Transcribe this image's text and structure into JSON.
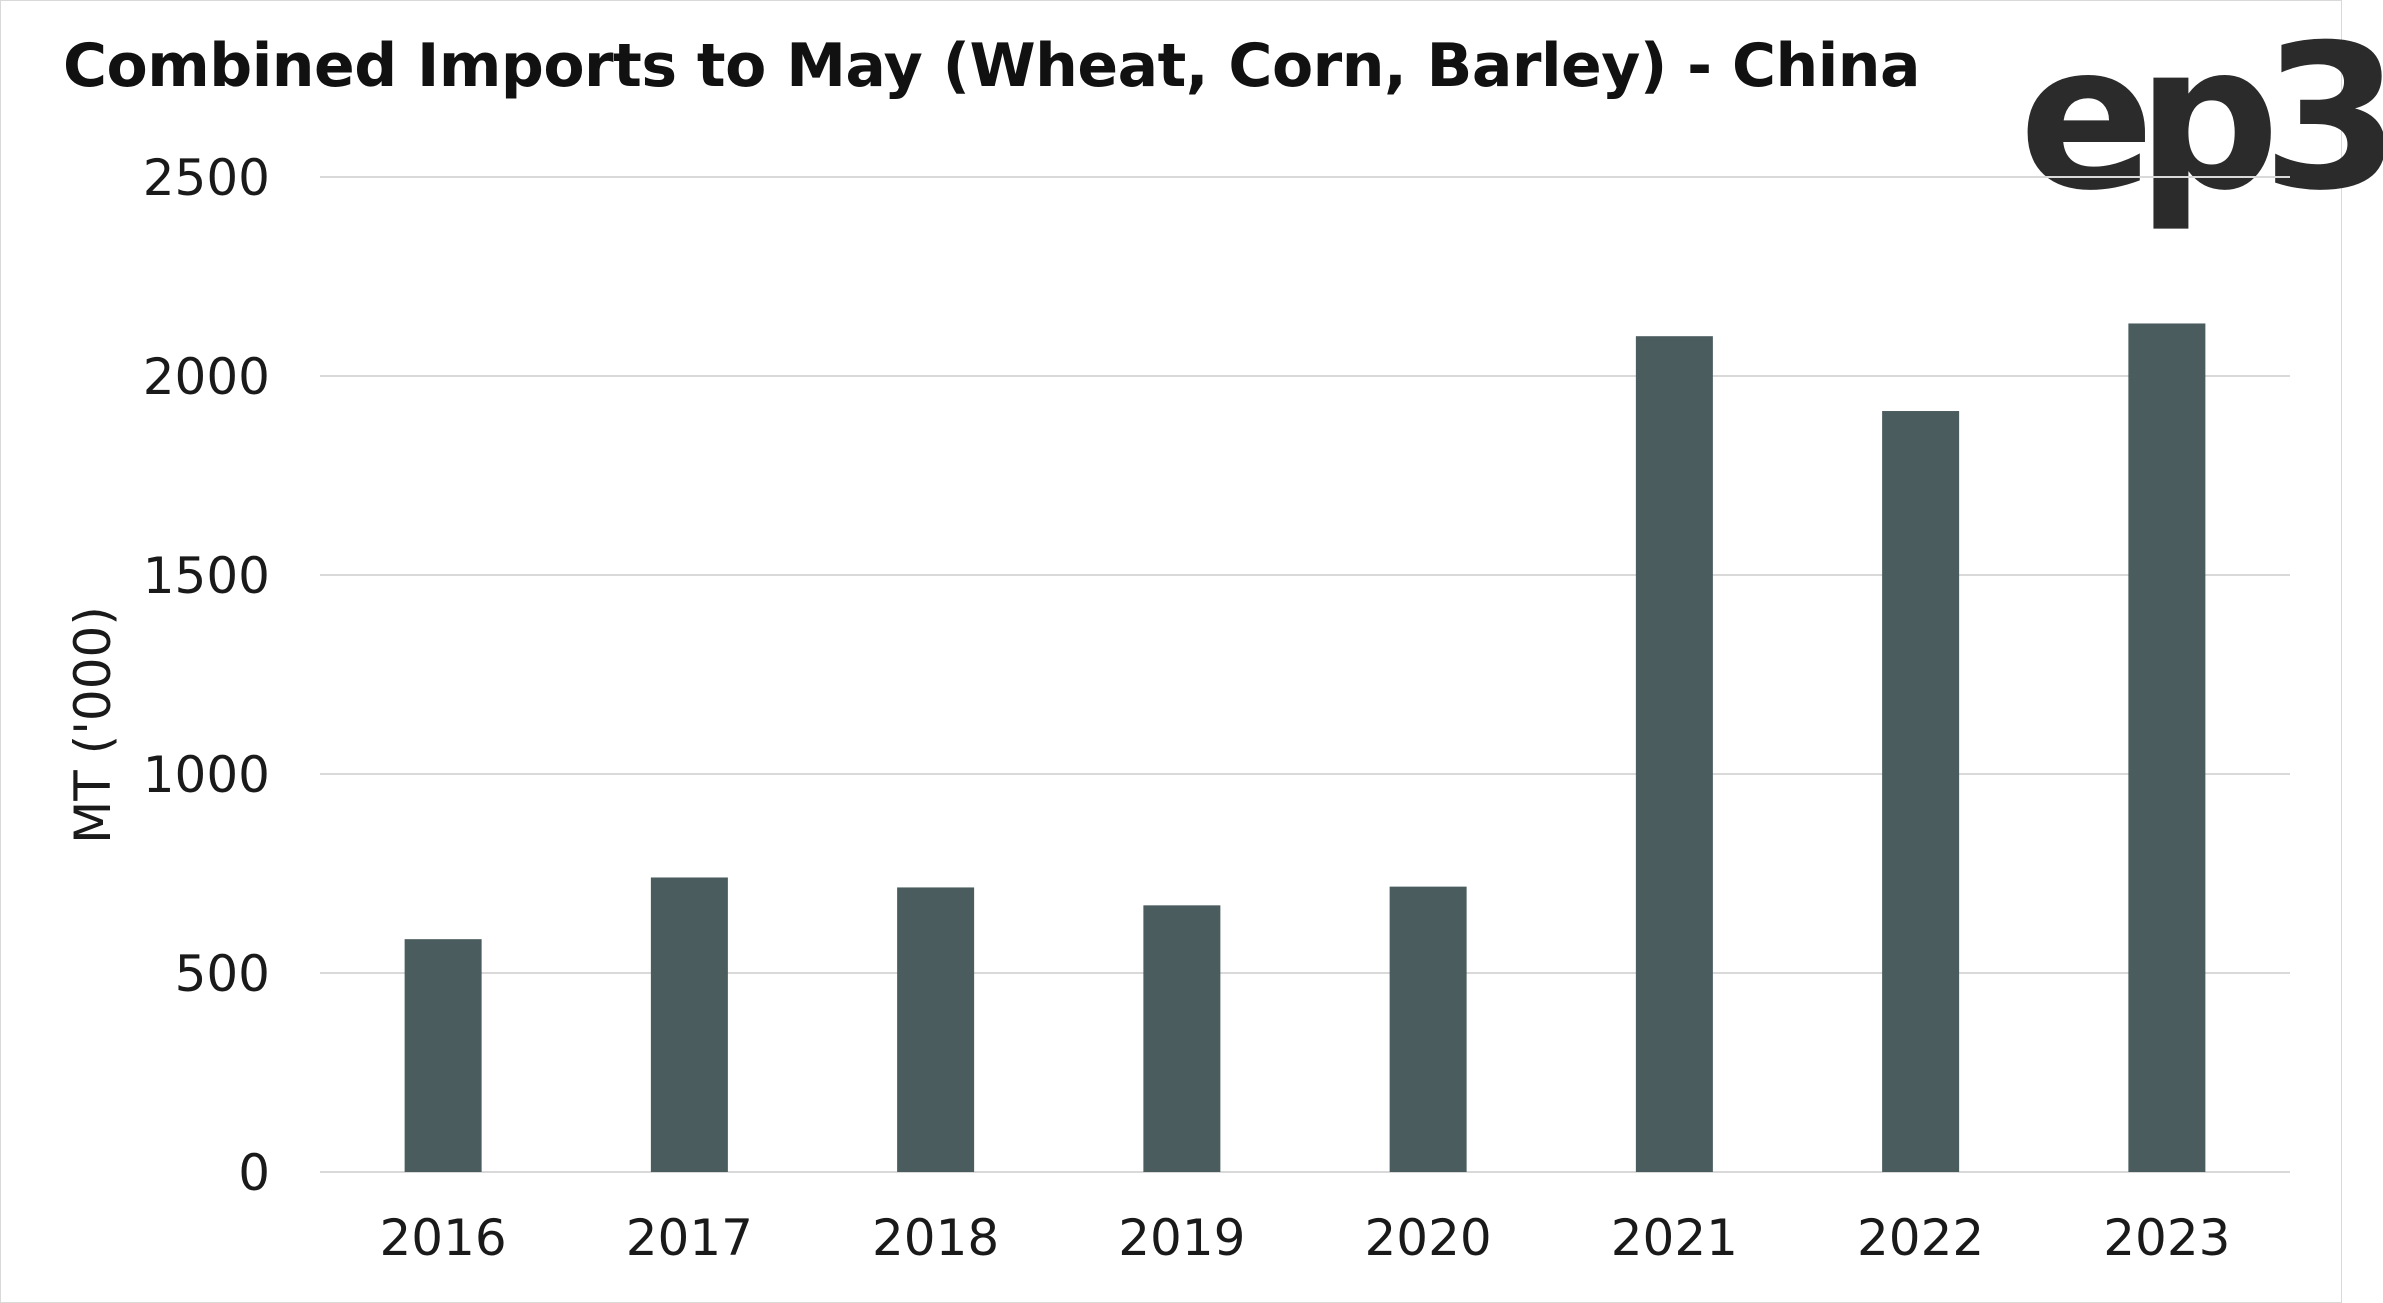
{
  "title": "Combined Imports to May (Wheat, Corn, Barley) - China",
  "logo_text": "ep3",
  "colors": {
    "bar": "#4a5c5e",
    "gridline": "#d9d9d9",
    "text": "#1a1a1a",
    "logo": "#2b2b2b"
  },
  "chart_data": {
    "type": "bar",
    "title": "Combined Imports to May (Wheat, Corn, Barley) - China",
    "xlabel": "",
    "ylabel": "MT ('000)",
    "ylim": [
      0,
      2500
    ],
    "yticks": [
      0,
      500,
      1000,
      1500,
      2000,
      2500
    ],
    "grid": true,
    "legend": "none",
    "categories": [
      "2016",
      "2017",
      "2018",
      "2019",
      "2020",
      "2021",
      "2022",
      "2023"
    ],
    "values": [
      585,
      740,
      715,
      670,
      717,
      2100,
      1912,
      2132
    ]
  }
}
